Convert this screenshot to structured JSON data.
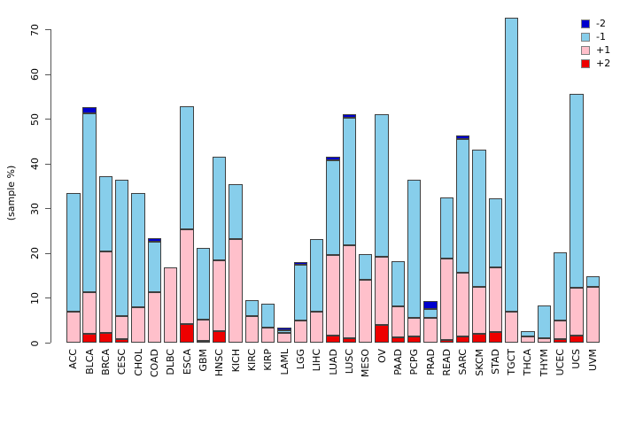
{
  "chart_data": {
    "type": "bar",
    "stacked": true,
    "title": "",
    "ylabel": "(sample %)",
    "xlabel": "",
    "ylim": [
      0,
      70
    ],
    "yticks": [
      0,
      10,
      20,
      30,
      40,
      50,
      60,
      70
    ],
    "grid": false,
    "legend_position": "top-right",
    "categories": [
      "ACC",
      "BLCA",
      "BRCA",
      "CESC",
      "CHOL",
      "COAD",
      "DLBC",
      "ESCA",
      "GBM",
      "HNSC",
      "KICH",
      "KIRC",
      "KIRP",
      "LAML",
      "LGG",
      "LIHC",
      "LUAD",
      "LUSC",
      "MESO",
      "OV",
      "PAAD",
      "PCPG",
      "PRAD",
      "READ",
      "SARC",
      "SKCM",
      "STAD",
      "TGCT",
      "THCA",
      "THYM",
      "UCEC",
      "UCS",
      "UVM"
    ],
    "stack_order_bottom_to_top": [
      "+2",
      "+1",
      "-1",
      "-2"
    ],
    "series": [
      {
        "name": "+2",
        "color": "#ee0000",
        "values": [
          0,
          2.0,
          2.1,
          0.8,
          0,
          0,
          0,
          4.2,
          0.4,
          2.5,
          0,
          0,
          0,
          0,
          0,
          0,
          1.5,
          0.9,
          0,
          4.0,
          1.2,
          1.3,
          0,
          0.5,
          1.3,
          2.0,
          2.3,
          0,
          0,
          0,
          0.8,
          1.6,
          0
        ]
      },
      {
        "name": "+1",
        "color": "#ffc0cb",
        "values": [
          6.9,
          9.2,
          18.3,
          5.1,
          7.9,
          11.2,
          16.8,
          21.1,
          4.8,
          15.8,
          23.1,
          5.9,
          3.3,
          2.2,
          4.9,
          6.9,
          18.1,
          20.9,
          14.0,
          15.1,
          7.0,
          4.3,
          5.6,
          18.3,
          14.3,
          10.5,
          14.5,
          7.0,
          1.4,
          1.0,
          4.2,
          10.7,
          12.5
        ]
      },
      {
        "name": "-1",
        "color": "#87ceeb",
        "values": [
          26.6,
          40.0,
          16.8,
          30.5,
          25.6,
          11.4,
          0,
          27.4,
          16.0,
          23.2,
          12.2,
          3.5,
          5.4,
          0.6,
          12.5,
          16.2,
          21.1,
          28.4,
          5.8,
          32.0,
          9.9,
          30.8,
          2.0,
          13.6,
          29.8,
          30.7,
          15.5,
          65.5,
          1.1,
          7.4,
          15.2,
          43.2,
          2.3
        ]
      },
      {
        "name": "-2",
        "color": "#0000cd",
        "values": [
          0,
          1.4,
          0,
          0,
          0,
          0.8,
          0,
          0,
          0,
          0,
          0,
          0,
          0,
          0.6,
          0.5,
          0,
          0.8,
          0.8,
          0,
          0,
          0,
          0,
          1.6,
          0,
          0.8,
          0,
          0,
          0,
          0,
          0,
          0,
          0,
          0
        ]
      }
    ],
    "totals": [
      33.5,
      52.6,
      37.2,
      36.4,
      33.5,
      23.4,
      16.8,
      52.7,
      21.2,
      41.5,
      35.3,
      9.4,
      8.7,
      3.4,
      17.9,
      23.1,
      41.5,
      51.0,
      19.8,
      51.1,
      18.1,
      36.4,
      9.2,
      32.4,
      46.2,
      43.2,
      32.3,
      72.5,
      2.5,
      8.4,
      20.2,
      55.5,
      14.8
    ],
    "legend": {
      "entries": [
        {
          "label": "-2",
          "color": "#0000cd"
        },
        {
          "label": "-1",
          "color": "#87ceeb"
        },
        {
          "label": "+1",
          "color": "#ffc0cb"
        },
        {
          "label": "+2",
          "color": "#ee0000"
        }
      ]
    }
  }
}
